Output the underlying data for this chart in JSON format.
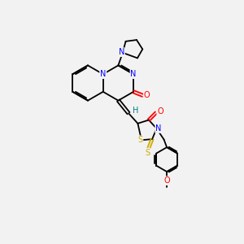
{
  "bg_color": "#f2f2f2",
  "atom_colors": {
    "N": "#0000ff",
    "O": "#ff0000",
    "S": "#ccaa00",
    "C": "#000000",
    "H": "#008080"
  },
  "lw": 1.3,
  "fs": 7.0
}
